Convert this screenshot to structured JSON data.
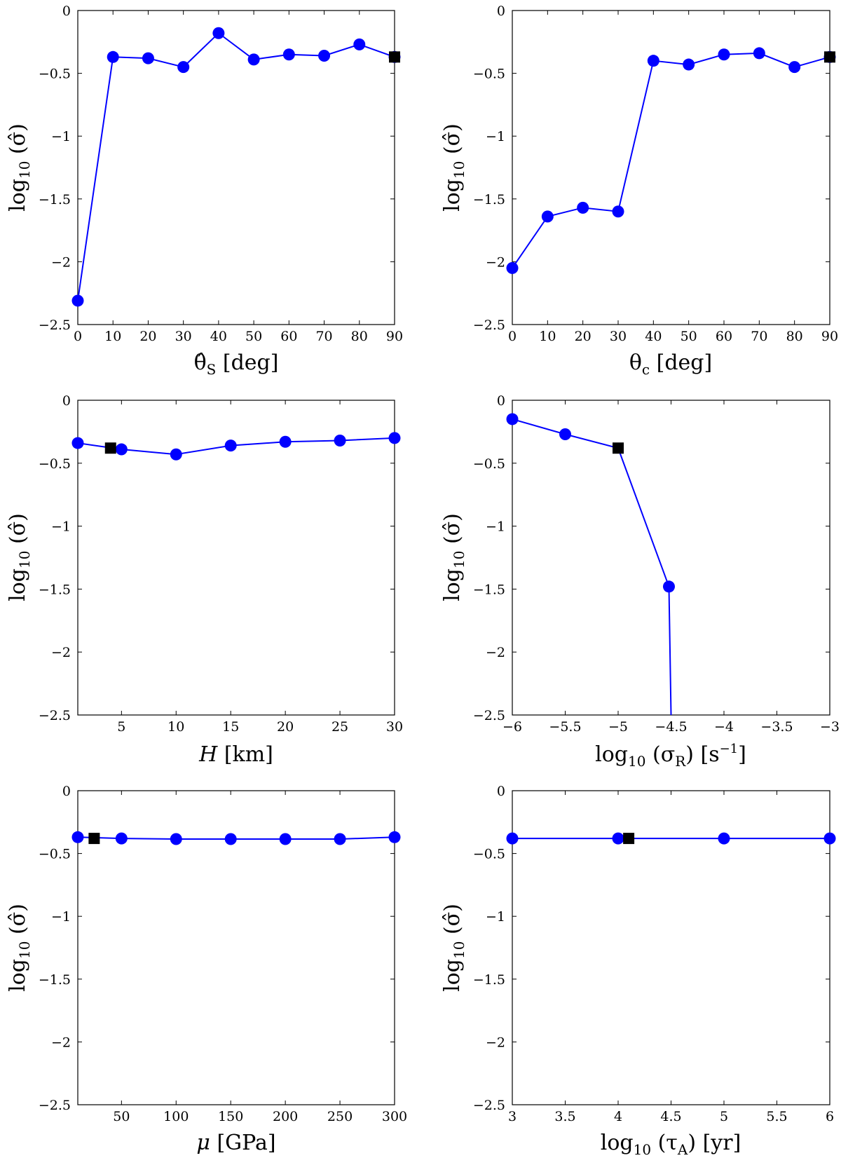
{
  "colors": {
    "series": "#0000ff",
    "reference": "#000000"
  },
  "chart_data": [
    {
      "type": "line",
      "xlabel": "θ̂S [deg]",
      "ylabel": "log10 (σ̂)",
      "xlim": [
        0,
        90
      ],
      "ylim": [
        -2.5,
        0
      ],
      "xticks": [
        0,
        10,
        20,
        30,
        40,
        50,
        60,
        70,
        80,
        90
      ],
      "xtick_labels": [
        "0",
        "10",
        "20",
        "30",
        "40",
        "50",
        "60",
        "70",
        "80",
        "90"
      ],
      "yticks": [
        0,
        -0.5,
        -1,
        -1.5,
        -2,
        -2.5
      ],
      "ytick_labels": [
        "0",
        "−0.5",
        "−1",
        "−1.5",
        "−2",
        "−2.5"
      ],
      "x": [
        0,
        10,
        20,
        30,
        40,
        50,
        60,
        70,
        80,
        90
      ],
      "y": [
        -2.31,
        -0.37,
        -0.38,
        -0.45,
        -0.18,
        -0.39,
        -0.35,
        -0.36,
        -0.27,
        -0.37
      ],
      "reference_point": {
        "x": 90,
        "y": -0.37
      },
      "grid": false
    },
    {
      "type": "line",
      "xlabel": "θc [deg]",
      "ylabel": "log10 (σ̂)",
      "xlim": [
        0,
        90
      ],
      "ylim": [
        -2.5,
        0
      ],
      "xticks": [
        0,
        10,
        20,
        30,
        40,
        50,
        60,
        70,
        80,
        90
      ],
      "xtick_labels": [
        "0",
        "10",
        "20",
        "30",
        "40",
        "50",
        "60",
        "70",
        "80",
        "90"
      ],
      "yticks": [
        0,
        -0.5,
        -1,
        -1.5,
        -2,
        -2.5
      ],
      "ytick_labels": [
        "0",
        "−0.5",
        "−1",
        "−1.5",
        "−2",
        "−2.5"
      ],
      "x": [
        0,
        10,
        20,
        30,
        40,
        50,
        60,
        70,
        80,
        90
      ],
      "y": [
        -2.05,
        -1.64,
        -1.57,
        -1.6,
        -0.4,
        -0.43,
        -0.35,
        -0.34,
        -0.45,
        -0.37
      ],
      "reference_point": {
        "x": 90,
        "y": -0.37
      },
      "grid": false
    },
    {
      "type": "line",
      "xlabel": "H [km]",
      "ylabel": "log10 (σ̂)",
      "xlim": [
        1,
        30
      ],
      "ylim": [
        -2.5,
        0
      ],
      "xticks": [
        5,
        10,
        15,
        20,
        25,
        30
      ],
      "xtick_labels": [
        "5",
        "10",
        "15",
        "20",
        "25",
        "30"
      ],
      "yticks": [
        0,
        -0.5,
        -1,
        -1.5,
        -2,
        -2.5
      ],
      "ytick_labels": [
        "0",
        "−0.5",
        "−1",
        "−1.5",
        "−2",
        "−2.5"
      ],
      "x": [
        1,
        5,
        10,
        15,
        20,
        25,
        30
      ],
      "y": [
        -0.34,
        -0.39,
        -0.43,
        -0.36,
        -0.33,
        -0.32,
        -0.3
      ],
      "reference_point": {
        "x": 4,
        "y": -0.38
      },
      "grid": false
    },
    {
      "type": "line",
      "xlabel": "log10 (σR) [s−1]",
      "ylabel": "log10 (σ̂)",
      "xlim": [
        -6,
        -3
      ],
      "ylim": [
        -2.5,
        0
      ],
      "xticks": [
        -6,
        -5.5,
        -5,
        -4.5,
        -4,
        -3.5,
        -3
      ],
      "xtick_labels": [
        "−6",
        "−5.5",
        "−5",
        "−4.5",
        "−4",
        "−3.5",
        "−3"
      ],
      "yticks": [
        0,
        -0.5,
        -1,
        -1.5,
        -2,
        -2.5
      ],
      "ytick_labels": [
        "0",
        "−0.5",
        "−1",
        "−1.5",
        "−2",
        "−2.5"
      ],
      "x": [
        -6,
        -5.5,
        -5,
        -4.52,
        -4.5
      ],
      "y": [
        -0.15,
        -0.27,
        -0.38,
        -1.48,
        -2.5
      ],
      "markers": [
        true,
        true,
        false,
        true,
        false
      ],
      "reference_point": {
        "x": -5,
        "y": -0.38
      },
      "grid": false
    },
    {
      "type": "line",
      "xlabel": "μ [GPa]",
      "ylabel": "log10 (σ̂)",
      "xlim": [
        10,
        300
      ],
      "ylim": [
        -2.5,
        0
      ],
      "xticks": [
        50,
        100,
        150,
        200,
        250,
        300
      ],
      "xtick_labels": [
        "50",
        "100",
        "150",
        "200",
        "250",
        "300"
      ],
      "yticks": [
        0,
        -0.5,
        -1,
        -1.5,
        -2,
        -2.5
      ],
      "ytick_labels": [
        "0",
        "−0.5",
        "−1",
        "−1.5",
        "−2",
        "−2.5"
      ],
      "x": [
        10,
        50,
        100,
        150,
        200,
        250,
        300
      ],
      "y": [
        -0.37,
        -0.38,
        -0.385,
        -0.385,
        -0.385,
        -0.385,
        -0.37
      ],
      "reference_point": {
        "x": 25,
        "y": -0.38
      },
      "grid": false
    },
    {
      "type": "line",
      "xlabel": "log10 (τA) [yr]",
      "ylabel": "log10 (σ̂)",
      "xlim": [
        3,
        6
      ],
      "ylim": [
        -2.5,
        0
      ],
      "xticks": [
        3,
        3.5,
        4,
        4.5,
        5,
        5.5,
        6
      ],
      "xtick_labels": [
        "3",
        "3.5",
        "4",
        "4.5",
        "5",
        "5.5",
        "6"
      ],
      "yticks": [
        0,
        -0.5,
        -1,
        -1.5,
        -2,
        -2.5
      ],
      "ytick_labels": [
        "0",
        "−0.5",
        "−1",
        "−1.5",
        "−2",
        "−2.5"
      ],
      "x": [
        3,
        4,
        5,
        6
      ],
      "y": [
        -0.38,
        -0.38,
        -0.38,
        -0.38
      ],
      "reference_point": {
        "x": 4.1,
        "y": -0.38
      },
      "grid": false
    }
  ]
}
